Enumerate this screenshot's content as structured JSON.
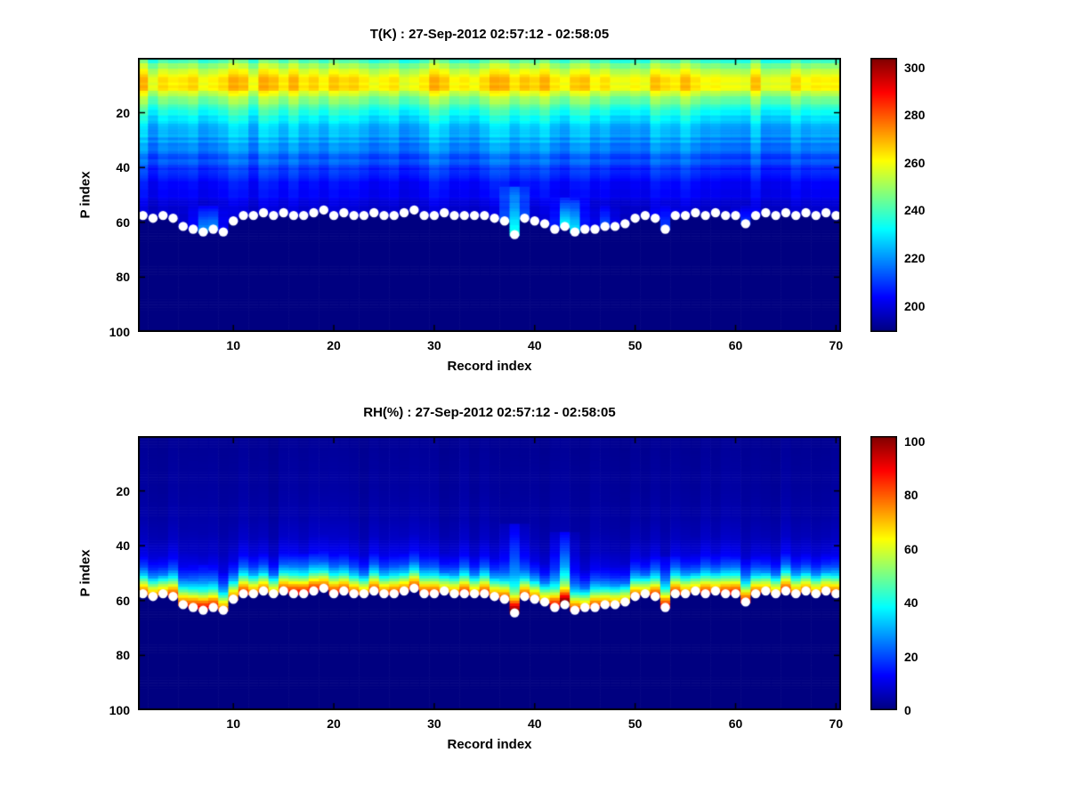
{
  "figure": {
    "background": "#ffffff",
    "marker_color": "#ffffff",
    "axis_color": "#000000"
  },
  "chart_data": [
    {
      "type": "heatmap",
      "title": "T(K) : 27-Sep-2012 02:57:12 - 02:58:05",
      "xlabel": "Record index",
      "ylabel": "P index",
      "colormap": "jet",
      "x_ticks": [
        10,
        20,
        30,
        40,
        50,
        60,
        70
      ],
      "y_ticks": [
        20,
        40,
        60,
        80,
        100
      ],
      "x_range": [
        1,
        70
      ],
      "y_range": [
        1,
        100
      ],
      "y_axis_reversed": true,
      "n_records": 70,
      "n_levels": 100,
      "clim": [
        189,
        304
      ],
      "colorbar_ticks": [
        200,
        220,
        240,
        260,
        280,
        300
      ],
      "profile_p": [
        1,
        3,
        6,
        9,
        12,
        15,
        18,
        22,
        26,
        30,
        34,
        38,
        42,
        46,
        50,
        54,
        58,
        62,
        70
      ],
      "profile_v": [
        238,
        248,
        258,
        266,
        263,
        250,
        240,
        232,
        226,
        222,
        218,
        213,
        209,
        206,
        202,
        199,
        198,
        197,
        196
      ],
      "column_jitter": 7,
      "row_jitter": 2.5,
      "relative_to_surface": false,
      "masked_value": 189,
      "plumes": [
        {
          "record": 38,
          "top_p": 48,
          "boost": 40
        },
        {
          "record": 43,
          "top_p": 52,
          "boost": 30
        },
        {
          "record": 44,
          "top_p": 53,
          "boost": 24
        },
        {
          "record": 7,
          "top_p": 55,
          "boost": 20
        },
        {
          "record": 8,
          "top_p": 55,
          "boost": 18
        },
        {
          "record": 47,
          "top_p": 55,
          "boost": 16
        },
        {
          "record": 53,
          "top_p": 55,
          "boost": 14
        },
        {
          "record": 61,
          "top_p": 55,
          "boost": 14
        }
      ],
      "surface_p": [
        58,
        59,
        58,
        59,
        62,
        63,
        64,
        63,
        64,
        60,
        58,
        58,
        57,
        58,
        57,
        58,
        58,
        57,
        56,
        58,
        57,
        58,
        58,
        57,
        58,
        58,
        57,
        56,
        58,
        58,
        57,
        58,
        58,
        58,
        58,
        59,
        60,
        65,
        59,
        60,
        61,
        63,
        62,
        64,
        63,
        63,
        62,
        62,
        61,
        59,
        58,
        59,
        63,
        58,
        58,
        57,
        58,
        57,
        58,
        58,
        61,
        58,
        57,
        58,
        57,
        58,
        57,
        58,
        57,
        58
      ]
    },
    {
      "type": "heatmap",
      "title": "RH(%) : 27-Sep-2012 02:57:12 - 02:58:05",
      "xlabel": "Record index",
      "ylabel": "P index",
      "colormap": "jet",
      "x_ticks": [
        10,
        20,
        30,
        40,
        50,
        60,
        70
      ],
      "y_ticks": [
        20,
        40,
        60,
        80,
        100
      ],
      "x_range": [
        1,
        70
      ],
      "y_range": [
        1,
        100
      ],
      "y_axis_reversed": true,
      "n_records": 70,
      "n_levels": 100,
      "clim": [
        0,
        102
      ],
      "colorbar_ticks": [
        0,
        20,
        40,
        60,
        80,
        100
      ],
      "profile_p": [
        1,
        20,
        30,
        38,
        44,
        48,
        51,
        53,
        55,
        57,
        58,
        60,
        64,
        70
      ],
      "profile_v": [
        2,
        3,
        4,
        6,
        10,
        18,
        30,
        45,
        62,
        75,
        80,
        70,
        40,
        20
      ],
      "column_jitter": 8,
      "row_jitter": 1.5,
      "relative_to_surface": true,
      "masked_value": 0,
      "plumes": [
        {
          "record": 38,
          "top_p": 33,
          "boost": 26
        },
        {
          "record": 43,
          "top_p": 36,
          "boost": 24
        },
        {
          "record": 17,
          "top_p": 44,
          "boost": 10
        },
        {
          "record": 53,
          "top_p": 45,
          "boost": 12
        },
        {
          "record": 61,
          "top_p": 46,
          "boost": 10
        },
        {
          "record": 7,
          "top_p": 48,
          "boost": 10
        }
      ],
      "surface_p": [
        58,
        59,
        58,
        59,
        62,
        63,
        64,
        63,
        64,
        60,
        58,
        58,
        57,
        58,
        57,
        58,
        58,
        57,
        56,
        58,
        57,
        58,
        58,
        57,
        58,
        58,
        57,
        56,
        58,
        58,
        57,
        58,
        58,
        58,
        58,
        59,
        60,
        65,
        59,
        60,
        61,
        63,
        62,
        64,
        63,
        63,
        62,
        62,
        61,
        59,
        58,
        59,
        63,
        58,
        58,
        57,
        58,
        57,
        58,
        58,
        61,
        58,
        57,
        58,
        57,
        58,
        57,
        58,
        57,
        58
      ]
    }
  ]
}
